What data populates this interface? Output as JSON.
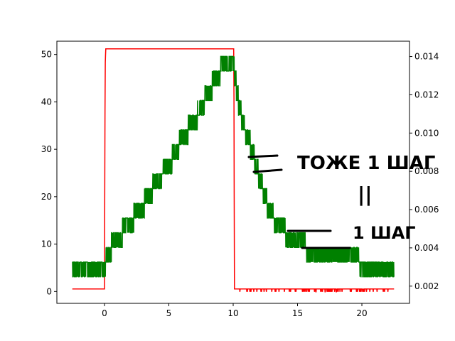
{
  "chart_data": {
    "type": "line",
    "title": "",
    "xlabel": "",
    "ylabel": "",
    "xlim": [
      -3.7,
      23.7
    ],
    "ylim_left": [
      -2.5,
      52.8
    ],
    "ylim_right": [
      0.0011,
      0.0148
    ],
    "x_ticks": [
      "0",
      "5",
      "10",
      "15",
      "20"
    ],
    "y_left_ticks": [
      "0",
      "10",
      "20",
      "30",
      "40",
      "50"
    ],
    "y_right_ticks": [
      "0.002",
      "0.004",
      "0.006",
      "0.008",
      "0.010",
      "0.012",
      "0.014"
    ],
    "grid": false,
    "legend": "none",
    "series": [
      {
        "color": "#ff0000",
        "axis": "right",
        "x": [
          -2.5,
          0.0,
          0.05,
          0.1,
          10.0,
          10.05,
          10.1,
          22.5
        ],
        "y": [
          0.00185,
          0.00185,
          0.0135,
          0.0144,
          0.0144,
          0.0144,
          0.00185,
          0.00185
        ],
        "noise": "sparse downward spikes to about 0.0017 for x > 10"
      },
      {
        "color": "#008000",
        "axis": "left",
        "x": [
          -2.5,
          0.0,
          0.2,
          1.0,
          2.0,
          3.0,
          4.0,
          5.0,
          6.0,
          7.0,
          8.0,
          9.0,
          10.0,
          10.5,
          11.0,
          11.5,
          12.0,
          12.5,
          13.0,
          14.0,
          15.0,
          16.0,
          16.5,
          17.0,
          22.5
        ],
        "y": [
          3.2,
          3.2,
          6.5,
          9.5,
          13.0,
          16.5,
          21.5,
          25.0,
          30.5,
          34.5,
          40.0,
          45.0,
          46.5,
          37.0,
          32.0,
          28.0,
          22.5,
          18.0,
          14.5,
          11.0,
          9.0,
          7.0,
          6.2,
          4.8,
          4.5
        ],
        "noise": "jittery band about 3 units tall around the values"
      }
    ]
  },
  "annotations": [
    {
      "text": "ТОЖЕ 1 ШАГ"
    },
    {
      "text": "||"
    },
    {
      "text": "1 ШАГ"
    }
  ]
}
